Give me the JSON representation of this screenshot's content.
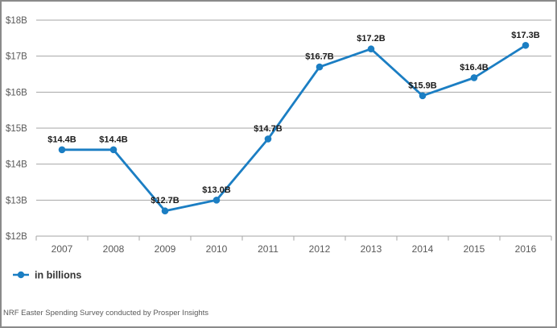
{
  "chart_data": {
    "type": "line",
    "title": "",
    "xlabel": "",
    "ylabel": "",
    "categories": [
      "2007",
      "2008",
      "2009",
      "2010",
      "2011",
      "2012",
      "2013",
      "2014",
      "2015",
      "2016"
    ],
    "series": [
      {
        "name": "in billions",
        "values": [
          14.4,
          14.4,
          12.7,
          13.0,
          14.7,
          16.7,
          17.2,
          15.9,
          16.4,
          17.3
        ]
      }
    ],
    "point_labels": [
      "$14.4B",
      "$14.4B",
      "$12.7B",
      "$13.0B",
      "$14.7B",
      "$16.7B",
      "$17.2B",
      "$15.9B",
      "$16.4B",
      "$17.3B"
    ],
    "y_tick_labels": [
      "$12B",
      "$13B",
      "$14B",
      "$15B",
      "$16B",
      "$17B",
      "$18B"
    ],
    "ylim": [
      12,
      18
    ],
    "y_tick_step": 1,
    "grid": true,
    "legend_position": "bottom-left"
  },
  "legend": {
    "label": "in billions"
  },
  "footer": {
    "source_text": "NRF Easter Spending Survey conducted by Prosper Insights"
  },
  "colors": {
    "line": "#1b7ec3",
    "marker": "#1b7ec3",
    "grid": "#a6a6a6",
    "axis": "#a6a6a6",
    "axis_text": "#595959",
    "data_label_text": "#1a1a1a",
    "legend_text": "#333333",
    "footer_text": "#595959",
    "background": "#ffffff",
    "border": "#8a8a8a"
  }
}
